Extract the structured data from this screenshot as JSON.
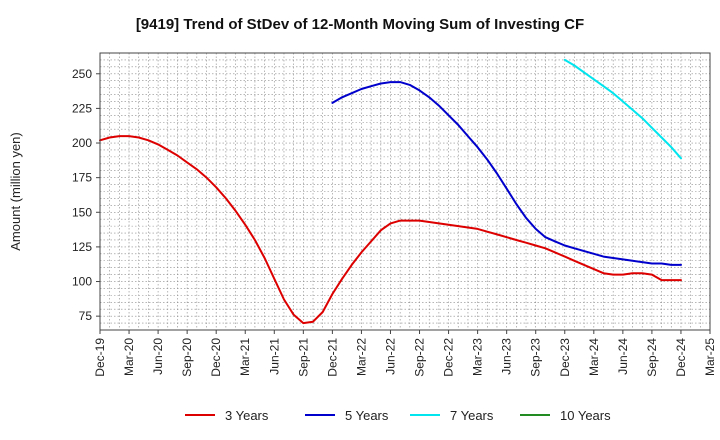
{
  "chart_data": {
    "type": "line",
    "title": "[9419]  Trend of StDev of 12-Month Moving Sum of Investing CF",
    "xlabel": "",
    "ylabel": "Amount (million yen)",
    "ylim": [
      65,
      265
    ],
    "yticks": [
      75,
      100,
      125,
      150,
      175,
      200,
      225,
      250
    ],
    "xticks": [
      "Dec-19",
      "Mar-20",
      "Jun-20",
      "Sep-20",
      "Dec-20",
      "Mar-21",
      "Jun-21",
      "Sep-21",
      "Dec-21",
      "Mar-22",
      "Jun-22",
      "Sep-22",
      "Dec-22",
      "Mar-23",
      "Jun-23",
      "Sep-23",
      "Dec-23",
      "Mar-24",
      "Jun-24",
      "Sep-24",
      "Dec-24",
      "Mar-25"
    ],
    "grid": true,
    "legend_position": "bottom",
    "series": [
      {
        "name": "3 Years",
        "color": "#dd0000",
        "x": [
          "Dec-19",
          "Jan-20",
          "Feb-20",
          "Mar-20",
          "Apr-20",
          "May-20",
          "Jun-20",
          "Jul-20",
          "Aug-20",
          "Sep-20",
          "Oct-20",
          "Nov-20",
          "Dec-20",
          "Jan-21",
          "Feb-21",
          "Mar-21",
          "Apr-21",
          "May-21",
          "Jun-21",
          "Jul-21",
          "Aug-21",
          "Sep-21",
          "Oct-21",
          "Nov-21",
          "Dec-21",
          "Jan-22",
          "Feb-22",
          "Mar-22",
          "Apr-22",
          "May-22",
          "Jun-22",
          "Jul-22",
          "Aug-22",
          "Sep-22",
          "Oct-22",
          "Nov-22",
          "Dec-22",
          "Jan-23",
          "Feb-23",
          "Mar-23",
          "Apr-23",
          "May-23",
          "Jun-23",
          "Jul-23",
          "Aug-23",
          "Sep-23",
          "Oct-23",
          "Nov-23",
          "Dec-23",
          "Jan-24",
          "Feb-24",
          "Mar-24",
          "Apr-24",
          "May-24",
          "Jun-24",
          "Jul-24",
          "Aug-24",
          "Sep-24",
          "Oct-24",
          "Nov-24",
          "Dec-24"
        ],
        "values": [
          202,
          204,
          205,
          205,
          204,
          202,
          199,
          195,
          191,
          186,
          181,
          175,
          168,
          160,
          151,
          141,
          130,
          117,
          102,
          87,
          76,
          70,
          71,
          78,
          91,
          102,
          112,
          121,
          129,
          137,
          142,
          144,
          144,
          144,
          143,
          142,
          141,
          140,
          139,
          138,
          136,
          134,
          132,
          130,
          128,
          126,
          124,
          121,
          118,
          115,
          112,
          109,
          106,
          105,
          105,
          106,
          106,
          105,
          101,
          101,
          101
        ]
      },
      {
        "name": "5 Years",
        "color": "#0000cc",
        "x": [
          "Dec-21",
          "Jan-22",
          "Feb-22",
          "Mar-22",
          "Apr-22",
          "May-22",
          "Jun-22",
          "Jul-22",
          "Aug-22",
          "Sep-22",
          "Oct-22",
          "Nov-22",
          "Dec-22",
          "Jan-23",
          "Feb-23",
          "Mar-23",
          "Apr-23",
          "May-23",
          "Jun-23",
          "Jul-23",
          "Aug-23",
          "Sep-23",
          "Oct-23",
          "Nov-23",
          "Dec-23",
          "Jan-24",
          "Feb-24",
          "Mar-24",
          "Apr-24",
          "May-24",
          "Jun-24",
          "Jul-24",
          "Aug-24",
          "Sep-24",
          "Oct-24",
          "Nov-24",
          "Dec-24"
        ],
        "values": [
          229,
          233,
          236,
          239,
          241,
          243,
          244,
          244,
          242,
          238,
          233,
          227,
          220,
          213,
          205,
          197,
          188,
          178,
          167,
          156,
          146,
          138,
          132,
          129,
          126,
          124,
          122,
          120,
          118,
          117,
          116,
          115,
          114,
          113,
          113,
          112,
          112
        ]
      },
      {
        "name": "7 Years",
        "color": "#00e5ee",
        "x": [
          "Dec-23",
          "Jan-24",
          "Feb-24",
          "Mar-24",
          "Apr-24",
          "May-24",
          "Jun-24",
          "Jul-24",
          "Aug-24",
          "Sep-24",
          "Oct-24",
          "Nov-24",
          "Dec-24"
        ],
        "values": [
          260,
          256,
          251,
          246,
          241,
          236,
          230,
          224,
          218,
          211,
          204,
          197,
          189
        ]
      },
      {
        "name": "10 Years",
        "color": "#228b22",
        "x": [],
        "values": []
      }
    ]
  }
}
